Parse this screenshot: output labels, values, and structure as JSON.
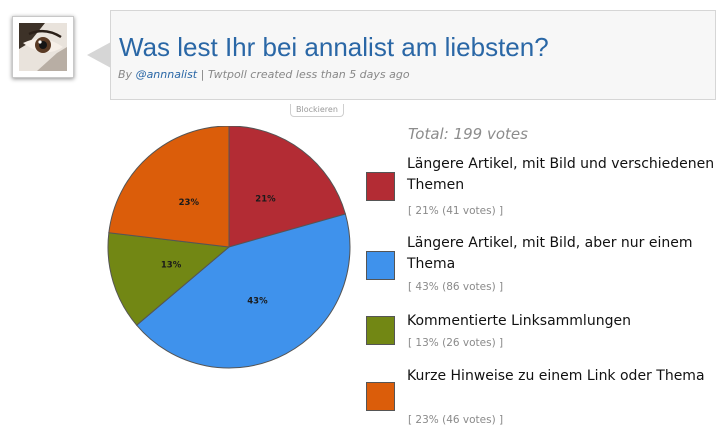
{
  "poll": {
    "title": "Was lest Ihr bei annalist am liebsten?",
    "byline_prefix": "By ",
    "byline_user": "@annnalist",
    "byline_suffix": " | Twtpoll created less than 5 days ago",
    "block_label": "Blockieren",
    "total": "Total: 199 votes"
  },
  "legend": [
    {
      "label": "Längere Artikel, mit Bild und verschiedenen Themen",
      "stats": "[ 21% (41 votes) ]",
      "color": "#b32c34"
    },
    {
      "label": "Längere Artikel, mit Bild, aber nur einem Thema",
      "stats": "[ 43% (86 votes) ]",
      "color": "#3f92ec"
    },
    {
      "label": "Kommentierte Linksammlungen",
      "stats": "[ 13% (26 votes) ]",
      "color": "#728714"
    },
    {
      "label": "Kurze Hinweise zu einem Link oder Thema",
      "stats": "[ 23% (46 votes) ]",
      "color": "#db5d0a"
    }
  ],
  "chart_data": {
    "type": "pie",
    "title": "",
    "categories": [
      "Längere Artikel, mit Bild und verschiedenen Themen",
      "Längere Artikel, mit Bild, aber nur einem Thema",
      "Kommentierte Linksammlungen",
      "Kurze Hinweise zu einem Link oder Thema"
    ],
    "values": [
      41,
      86,
      26,
      46
    ],
    "percent_labels": [
      "21%",
      "43%",
      "13%",
      "23%"
    ],
    "colors": [
      "#b32c34",
      "#3f92ec",
      "#728714",
      "#db5d0a"
    ]
  }
}
